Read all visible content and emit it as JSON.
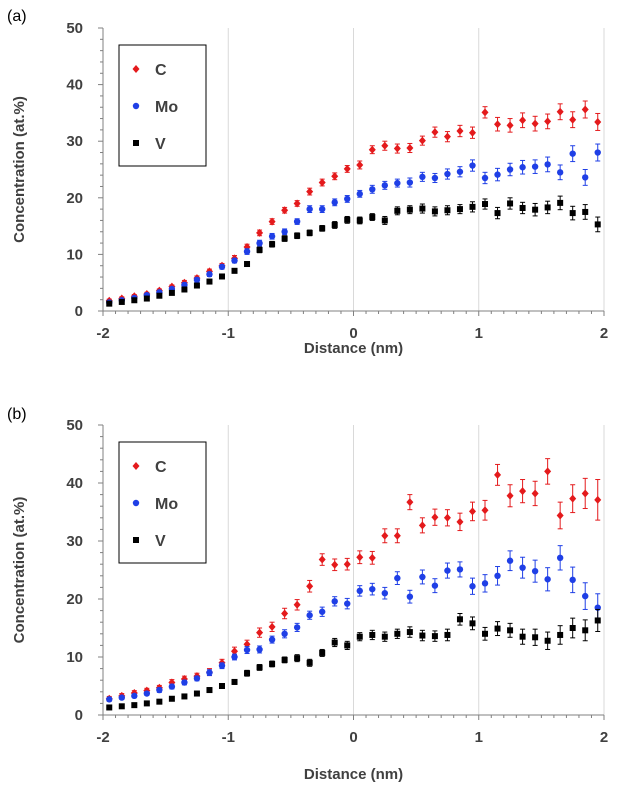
{
  "chart_data": [
    {
      "type": "scatter",
      "panel_label": "(a)",
      "xlabel": "Distance (nm)",
      "ylabel": "Concentration (at.%)",
      "xlim": [
        -2,
        2
      ],
      "ylim": [
        0,
        50
      ],
      "x_ticks": [
        "-2",
        "-1",
        "0",
        "1",
        "2"
      ],
      "y_ticks": [
        "0",
        "10",
        "20",
        "30",
        "40",
        "50"
      ],
      "grid": "vertical",
      "legend_position": "top-left",
      "series": [
        {
          "name": "C",
          "color": "#e41a1c",
          "marker": "diamond",
          "x": [
            -1.95,
            -1.85,
            -1.75,
            -1.65,
            -1.55,
            -1.45,
            -1.35,
            -1.25,
            -1.15,
            -1.05,
            -0.95,
            -0.85,
            -0.75,
            -0.65,
            -0.55,
            -0.45,
            -0.35,
            -0.25,
            -0.15,
            -0.05,
            0.05,
            0.15,
            0.25,
            0.35,
            0.45,
            0.55,
            0.65,
            0.75,
            0.85,
            0.95,
            1.05,
            1.15,
            1.25,
            1.35,
            1.45,
            1.55,
            1.65,
            1.75,
            1.85,
            1.95
          ],
          "y": [
            1.8,
            2.2,
            2.6,
            3.0,
            3.6,
            4.3,
            5.0,
            5.8,
            7.0,
            8.0,
            9.3,
            11.3,
            13.8,
            15.8,
            17.8,
            19.0,
            21.1,
            22.7,
            23.8,
            25.1,
            25.8,
            28.5,
            29.2,
            28.7,
            28.8,
            30.1,
            31.6,
            30.8,
            31.8,
            31.5,
            35.1,
            33.0,
            32.8,
            33.7,
            33.1,
            33.5,
            35.2,
            33.8,
            35.6,
            33.4
          ],
          "err": [
            0.3,
            0.3,
            0.3,
            0.3,
            0.3,
            0.3,
            0.4,
            0.4,
            0.4,
            0.4,
            0.5,
            0.5,
            0.5,
            0.5,
            0.5,
            0.5,
            0.6,
            0.6,
            0.6,
            0.6,
            0.7,
            0.7,
            0.8,
            0.8,
            0.8,
            0.8,
            0.9,
            0.9,
            1.0,
            1.0,
            1.0,
            1.2,
            1.2,
            1.3,
            1.3,
            1.3,
            1.4,
            1.4,
            1.5,
            1.5
          ]
        },
        {
          "name": "Mo",
          "color": "#1f3fe6",
          "marker": "circle",
          "x": [
            -1.95,
            -1.85,
            -1.75,
            -1.65,
            -1.55,
            -1.45,
            -1.35,
            -1.25,
            -1.15,
            -1.05,
            -0.95,
            -0.85,
            -0.75,
            -0.65,
            -0.55,
            -0.45,
            -0.35,
            -0.25,
            -0.15,
            -0.05,
            0.05,
            0.15,
            0.25,
            0.35,
            0.45,
            0.55,
            0.65,
            0.75,
            0.85,
            0.95,
            1.05,
            1.15,
            1.25,
            1.35,
            1.45,
            1.55,
            1.65,
            1.75,
            1.85,
            1.95
          ],
          "y": [
            1.5,
            1.9,
            2.3,
            2.8,
            3.3,
            3.9,
            4.6,
            5.5,
            6.5,
            7.8,
            8.9,
            10.5,
            12.0,
            13.2,
            14.0,
            15.8,
            18.0,
            18.0,
            19.2,
            19.8,
            20.7,
            21.5,
            22.2,
            22.6,
            22.7,
            23.7,
            23.5,
            24.2,
            24.6,
            25.7,
            23.5,
            24.1,
            25.0,
            25.4,
            25.5,
            25.9,
            24.5,
            27.8,
            23.6,
            28.0
          ],
          "err": [
            0.3,
            0.3,
            0.3,
            0.3,
            0.3,
            0.3,
            0.4,
            0.4,
            0.4,
            0.4,
            0.4,
            0.5,
            0.5,
            0.5,
            0.5,
            0.5,
            0.6,
            0.6,
            0.6,
            0.6,
            0.6,
            0.7,
            0.7,
            0.7,
            0.8,
            0.8,
            0.8,
            0.9,
            0.9,
            1.0,
            1.0,
            1.1,
            1.1,
            1.2,
            1.2,
            1.3,
            1.3,
            1.4,
            1.4,
            1.5
          ]
        },
        {
          "name": "V",
          "color": "#000000",
          "marker": "square",
          "x": [
            -1.95,
            -1.85,
            -1.75,
            -1.65,
            -1.55,
            -1.45,
            -1.35,
            -1.25,
            -1.15,
            -1.05,
            -0.95,
            -0.85,
            -0.75,
            -0.65,
            -0.55,
            -0.45,
            -0.35,
            -0.25,
            -0.15,
            -0.05,
            0.05,
            0.15,
            0.25,
            0.35,
            0.45,
            0.55,
            0.65,
            0.75,
            0.85,
            0.95,
            1.05,
            1.15,
            1.25,
            1.35,
            1.45,
            1.55,
            1.65,
            1.75,
            1.85,
            1.95
          ],
          "y": [
            1.3,
            1.6,
            1.9,
            2.2,
            2.7,
            3.2,
            3.8,
            4.5,
            5.2,
            6.1,
            7.1,
            8.3,
            10.8,
            11.8,
            12.8,
            13.3,
            13.8,
            14.6,
            15.2,
            16.1,
            16.0,
            16.6,
            16.0,
            17.7,
            17.9,
            18.1,
            17.6,
            17.8,
            18.0,
            18.4,
            18.9,
            17.3,
            19.0,
            18.2,
            17.9,
            18.3,
            19.1,
            17.3,
            17.5,
            15.3
          ],
          "err": [
            0.3,
            0.3,
            0.3,
            0.3,
            0.3,
            0.3,
            0.3,
            0.3,
            0.4,
            0.4,
            0.4,
            0.4,
            0.5,
            0.5,
            0.5,
            0.5,
            0.5,
            0.5,
            0.6,
            0.6,
            0.6,
            0.6,
            0.7,
            0.7,
            0.7,
            0.8,
            0.8,
            0.8,
            0.8,
            0.9,
            0.9,
            1.0,
            1.0,
            1.0,
            1.1,
            1.1,
            1.2,
            1.2,
            1.3,
            1.3
          ]
        }
      ]
    },
    {
      "type": "scatter",
      "panel_label": "(b)",
      "xlabel": "Distance (nm)",
      "ylabel": "Concentration (at.%)",
      "xlim": [
        -2,
        2
      ],
      "ylim": [
        0,
        50
      ],
      "x_ticks": [
        "-2",
        "-1",
        "0",
        "1",
        "2"
      ],
      "y_ticks": [
        "0",
        "10",
        "20",
        "30",
        "40",
        "50"
      ],
      "grid": "vertical",
      "legend_position": "top-left",
      "series": [
        {
          "name": "C",
          "color": "#e41a1c",
          "marker": "diamond",
          "x": [
            -1.95,
            -1.85,
            -1.75,
            -1.65,
            -1.55,
            -1.45,
            -1.35,
            -1.25,
            -1.15,
            -1.05,
            -0.95,
            -0.85,
            -0.75,
            -0.65,
            -0.55,
            -0.45,
            -0.35,
            -0.25,
            -0.15,
            -0.05,
            0.05,
            0.15,
            0.25,
            0.35,
            0.45,
            0.55,
            0.65,
            0.75,
            0.85,
            0.95,
            1.05,
            1.15,
            1.25,
            1.35,
            1.45,
            1.55,
            1.65,
            1.75,
            1.85,
            1.95
          ],
          "y": [
            2.8,
            3.3,
            3.8,
            4.2,
            4.7,
            5.6,
            6.2,
            6.7,
            7.4,
            9.0,
            11.0,
            12.2,
            14.2,
            15.2,
            17.5,
            19.0,
            22.2,
            26.8,
            25.9,
            26.0,
            27.2,
            27.1,
            30.9,
            30.9,
            36.7,
            32.7,
            34.1,
            34.0,
            33.3,
            35.1,
            35.3,
            41.4,
            37.8,
            38.6,
            38.2,
            42.0,
            34.4,
            37.3,
            38.2,
            37.1
          ],
          "err": [
            0.4,
            0.4,
            0.4,
            0.4,
            0.4,
            0.5,
            0.5,
            0.5,
            0.6,
            0.6,
            0.7,
            0.7,
            0.8,
            0.8,
            0.9,
            0.9,
            1.0,
            1.0,
            1.0,
            1.0,
            1.1,
            1.1,
            1.2,
            1.2,
            1.3,
            1.3,
            1.4,
            1.4,
            1.5,
            1.6,
            1.7,
            1.8,
            1.9,
            2.0,
            2.1,
            2.2,
            2.3,
            2.4,
            2.6,
            3.5
          ]
        },
        {
          "name": "Mo",
          "color": "#1f3fe6",
          "marker": "circle",
          "x": [
            -1.95,
            -1.85,
            -1.75,
            -1.65,
            -1.55,
            -1.45,
            -1.35,
            -1.25,
            -1.15,
            -1.05,
            -0.95,
            -0.85,
            -0.75,
            -0.65,
            -0.55,
            -0.45,
            -0.35,
            -0.25,
            -0.15,
            -0.05,
            0.05,
            0.15,
            0.25,
            0.35,
            0.45,
            0.55,
            0.65,
            0.75,
            0.85,
            0.95,
            1.05,
            1.15,
            1.25,
            1.35,
            1.45,
            1.55,
            1.65,
            1.75,
            1.85,
            1.95
          ],
          "y": [
            2.7,
            3.0,
            3.3,
            3.7,
            4.3,
            4.9,
            5.6,
            6.3,
            7.3,
            8.5,
            10.0,
            11.2,
            11.3,
            13.0,
            14.0,
            15.1,
            17.2,
            17.8,
            19.6,
            19.2,
            21.4,
            21.7,
            21.0,
            23.6,
            20.4,
            23.8,
            22.3,
            24.9,
            25.1,
            22.2,
            22.7,
            24.0,
            26.6,
            25.4,
            24.8,
            23.4,
            27.1,
            23.3,
            20.5,
            18.5
          ],
          "err": [
            0.3,
            0.3,
            0.3,
            0.3,
            0.4,
            0.4,
            0.4,
            0.4,
            0.5,
            0.5,
            0.5,
            0.6,
            0.6,
            0.6,
            0.7,
            0.7,
            0.7,
            0.8,
            0.8,
            0.9,
            0.9,
            1.0,
            1.0,
            1.1,
            1.1,
            1.2,
            1.2,
            1.3,
            1.3,
            1.4,
            1.5,
            1.6,
            1.7,
            1.8,
            1.9,
            2.0,
            2.1,
            2.2,
            2.3,
            2.4
          ]
        },
        {
          "name": "V",
          "color": "#000000",
          "marker": "square",
          "x": [
            -1.95,
            -1.85,
            -1.75,
            -1.65,
            -1.55,
            -1.45,
            -1.35,
            -1.25,
            -1.15,
            -1.05,
            -0.95,
            -0.85,
            -0.75,
            -0.65,
            -0.55,
            -0.45,
            -0.35,
            -0.25,
            -0.15,
            -0.05,
            0.05,
            0.15,
            0.25,
            0.35,
            0.45,
            0.55,
            0.65,
            0.75,
            0.85,
            0.95,
            1.05,
            1.15,
            1.25,
            1.35,
            1.45,
            1.55,
            1.65,
            1.75,
            1.85,
            1.95
          ],
          "y": [
            1.3,
            1.5,
            1.7,
            2.0,
            2.3,
            2.8,
            3.2,
            3.7,
            4.3,
            5.0,
            5.7,
            7.2,
            8.2,
            8.8,
            9.5,
            9.8,
            9.0,
            10.7,
            12.5,
            12.0,
            13.5,
            13.8,
            13.5,
            14.0,
            14.3,
            13.7,
            13.6,
            13.8,
            16.5,
            15.8,
            14.0,
            14.9,
            14.6,
            13.5,
            13.4,
            12.8,
            13.8,
            15.0,
            14.6,
            16.3
          ],
          "err": [
            0.3,
            0.3,
            0.3,
            0.3,
            0.3,
            0.3,
            0.3,
            0.4,
            0.4,
            0.4,
            0.4,
            0.5,
            0.5,
            0.5,
            0.5,
            0.6,
            0.6,
            0.6,
            0.7,
            0.7,
            0.7,
            0.8,
            0.8,
            0.8,
            0.9,
            0.9,
            0.9,
            1.0,
            1.0,
            1.1,
            1.1,
            1.2,
            1.2,
            1.3,
            1.4,
            1.5,
            1.6,
            1.7,
            1.8,
            1.9
          ]
        }
      ]
    }
  ]
}
